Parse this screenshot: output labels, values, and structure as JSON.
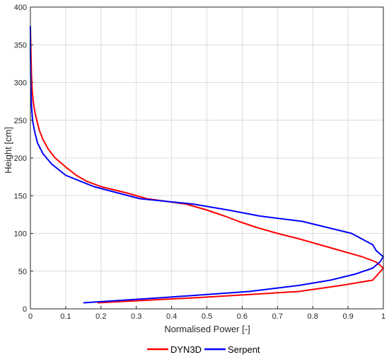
{
  "chart_data": {
    "type": "line",
    "xlabel": "Normalised Power [-]",
    "ylabel": "Height [cm]",
    "xlim": [
      0,
      1
    ],
    "ylim": [
      0,
      400
    ],
    "xticks": [
      "0",
      "0.1",
      "0.2",
      "0.3",
      "0.4",
      "0.5",
      "0.6",
      "0.7",
      "0.8",
      "0.9",
      "1"
    ],
    "yticks": [
      "0",
      "50",
      "100",
      "150",
      "200",
      "250",
      "300",
      "350",
      "400"
    ],
    "grid": true,
    "legend_position": "bottom",
    "series": [
      {
        "name": "DYN3D",
        "color": "#ff0000",
        "points": [
          [
            0.19,
            8
          ],
          [
            0.48,
            15
          ],
          [
            0.76,
            23
          ],
          [
            0.88,
            31
          ],
          [
            0.97,
            38
          ],
          [
            1.0,
            54
          ],
          [
            0.98,
            62
          ],
          [
            0.94,
            69
          ],
          [
            0.88,
            77
          ],
          [
            0.82,
            85
          ],
          [
            0.76,
            93
          ],
          [
            0.7,
            100
          ],
          [
            0.64,
            108
          ],
          [
            0.59,
            116
          ],
          [
            0.55,
            123
          ],
          [
            0.5,
            131
          ],
          [
            0.44,
            139
          ],
          [
            0.33,
            146
          ],
          [
            0.27,
            154
          ],
          [
            0.2,
            162
          ],
          [
            0.16,
            169
          ],
          [
            0.13,
            177
          ],
          [
            0.1,
            188
          ],
          [
            0.07,
            200
          ],
          [
            0.05,
            212
          ],
          [
            0.035,
            225
          ],
          [
            0.025,
            237
          ],
          [
            0.018,
            250
          ],
          [
            0.012,
            262
          ],
          [
            0.008,
            275
          ],
          [
            0.005,
            290
          ],
          [
            0.003,
            310
          ],
          [
            0.002,
            330
          ],
          [
            0.001,
            350
          ],
          [
            0.0,
            372
          ]
        ]
      },
      {
        "name": "Serpent",
        "color": "#0000ff",
        "points": [
          [
            0.15,
            8
          ],
          [
            0.38,
            15
          ],
          [
            0.62,
            23
          ],
          [
            0.76,
            31
          ],
          [
            0.85,
            38
          ],
          [
            0.92,
            46
          ],
          [
            0.97,
            54
          ],
          [
            0.99,
            62
          ],
          [
            1.0,
            69
          ],
          [
            0.98,
            77
          ],
          [
            0.97,
            85
          ],
          [
            0.91,
            100
          ],
          [
            0.77,
            116
          ],
          [
            0.65,
            123
          ],
          [
            0.56,
            131
          ],
          [
            0.46,
            139
          ],
          [
            0.31,
            146
          ],
          [
            0.18,
            162
          ],
          [
            0.1,
            177
          ],
          [
            0.06,
            192
          ],
          [
            0.035,
            206
          ],
          [
            0.02,
            220
          ],
          [
            0.012,
            235
          ],
          [
            0.006,
            250
          ],
          [
            0.003,
            270
          ],
          [
            0.001,
            300
          ],
          [
            0.0,
            340
          ],
          [
            0.0,
            375
          ]
        ]
      }
    ]
  }
}
